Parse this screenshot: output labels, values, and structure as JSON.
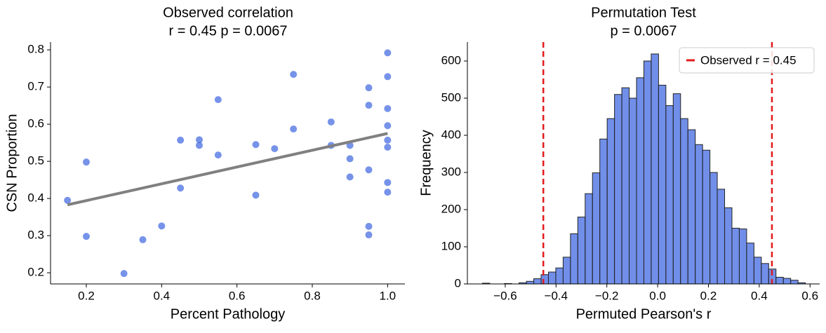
{
  "chart_data": [
    {
      "type": "scatter",
      "title": "Observed correlation",
      "subtitle": "r = 0.45  p = 0.0067",
      "x_label": "Percent Pathology",
      "y_label": "CSN Proportion",
      "x": [
        0.15,
        0.2,
        0.2,
        0.3,
        0.35,
        0.4,
        0.45,
        0.45,
        0.5,
        0.5,
        0.55,
        0.55,
        0.65,
        0.65,
        0.7,
        0.75,
        0.75,
        0.85,
        0.85,
        0.9,
        0.9,
        0.9,
        0.95,
        0.95,
        0.95,
        0.95,
        0.95,
        1.0,
        1.0,
        1.0,
        1.0,
        1.0,
        1.0,
        1.0,
        1.0
      ],
      "values": [
        0.395,
        0.498,
        0.298,
        0.198,
        0.289,
        0.326,
        0.557,
        0.428,
        0.558,
        0.543,
        0.666,
        0.517,
        0.545,
        0.409,
        0.534,
        0.734,
        0.587,
        0.606,
        0.543,
        0.543,
        0.507,
        0.458,
        0.698,
        0.651,
        0.477,
        0.325,
        0.302,
        0.792,
        0.728,
        0.642,
        0.596,
        0.557,
        0.538,
        0.443,
        0.417
      ],
      "color": "#4169e1",
      "fit": {
        "x": [
          0.15,
          1.0
        ],
        "values": [
          0.383,
          0.575
        ],
        "color": "#808080"
      },
      "xlim": [
        0.105,
        1.046
      ],
      "xticks": [
        0.2,
        0.4,
        0.6,
        0.8,
        {
          "value": 1.0,
          "label": "1.0"
        }
      ],
      "ylim": [
        0.17,
        0.821
      ],
      "yticks": [
        0.2,
        0.3,
        0.4,
        0.5,
        0.6,
        0.7,
        0.8
      ]
    },
    {
      "type": "histogram",
      "title": "Permutation Test",
      "subtitle": "p = 0.0067",
      "x_label": "Permuted Pearson's r",
      "y_label": "Frequency",
      "bins": [
        -0.69,
        -0.6611,
        -0.6322,
        -0.6033,
        -0.5744,
        -0.5455,
        -0.5166,
        -0.4877,
        -0.4588,
        -0.4299,
        -0.401,
        -0.3721,
        -0.3432,
        -0.3143,
        -0.2854,
        -0.2565,
        -0.2276,
        -0.1987,
        -0.1698,
        -0.1409,
        -0.112,
        -0.0831,
        -0.0542,
        -0.0253,
        0.0036,
        0.0325,
        0.0614,
        0.0903,
        0.1192,
        0.1481,
        0.177,
        0.2059,
        0.2348,
        0.2637,
        0.2926,
        0.3215,
        0.3504,
        0.3793,
        0.4082,
        0.4371,
        0.466,
        0.4949,
        0.5238,
        0.5527,
        0.5816
      ],
      "values": [
        2,
        0,
        0,
        1,
        0,
        3,
        7,
        14,
        25,
        32,
        43,
        72,
        135,
        180,
        243,
        299,
        390,
        445,
        510,
        528,
        500,
        555,
        600,
        619,
        535,
        480,
        512,
        445,
        415,
        375,
        360,
        300,
        255,
        205,
        150,
        148,
        110,
        72,
        55,
        40,
        18,
        15,
        10,
        3
      ],
      "color": "#4169e1",
      "observed": {
        "name": "Observed r = 0.45",
        "values": [
          -0.45,
          0.45
        ],
        "color": "#e31a1c"
      },
      "legend": "upper right",
      "xlim": [
        -0.749,
        0.638
      ],
      "xticks": [
        {
          "value": -0.6,
          "label": "−0.6"
        },
        {
          "value": -0.4,
          "label": "−0.4"
        },
        {
          "value": -0.2,
          "label": "−0.2"
        },
        {
          "value": 0,
          "label": "0.0"
        },
        0.2,
        0.4,
        0.6
      ],
      "ylim": [
        0,
        651
      ],
      "yticks": [
        0,
        100,
        200,
        300,
        400,
        500,
        600
      ]
    }
  ]
}
